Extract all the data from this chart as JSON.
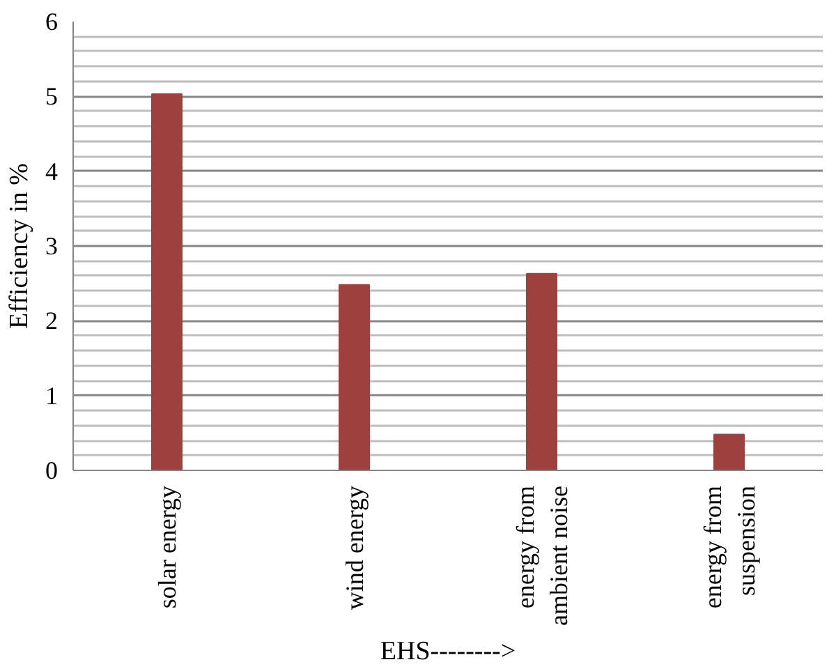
{
  "chart_data": {
    "type": "bar",
    "xlabel": "EHS-------->",
    "ylabel": "Efficiency in %",
    "categories": [
      "solar energy",
      "wind energy",
      "energy from ambient noise",
      "energy from suspension"
    ],
    "values": [
      5.03,
      2.48,
      2.63,
      0.48
    ],
    "color": "#9e413e",
    "ylim": [
      0,
      6
    ],
    "yticks": [
      0,
      1,
      2,
      3,
      4,
      5,
      6
    ],
    "grid": "y"
  }
}
